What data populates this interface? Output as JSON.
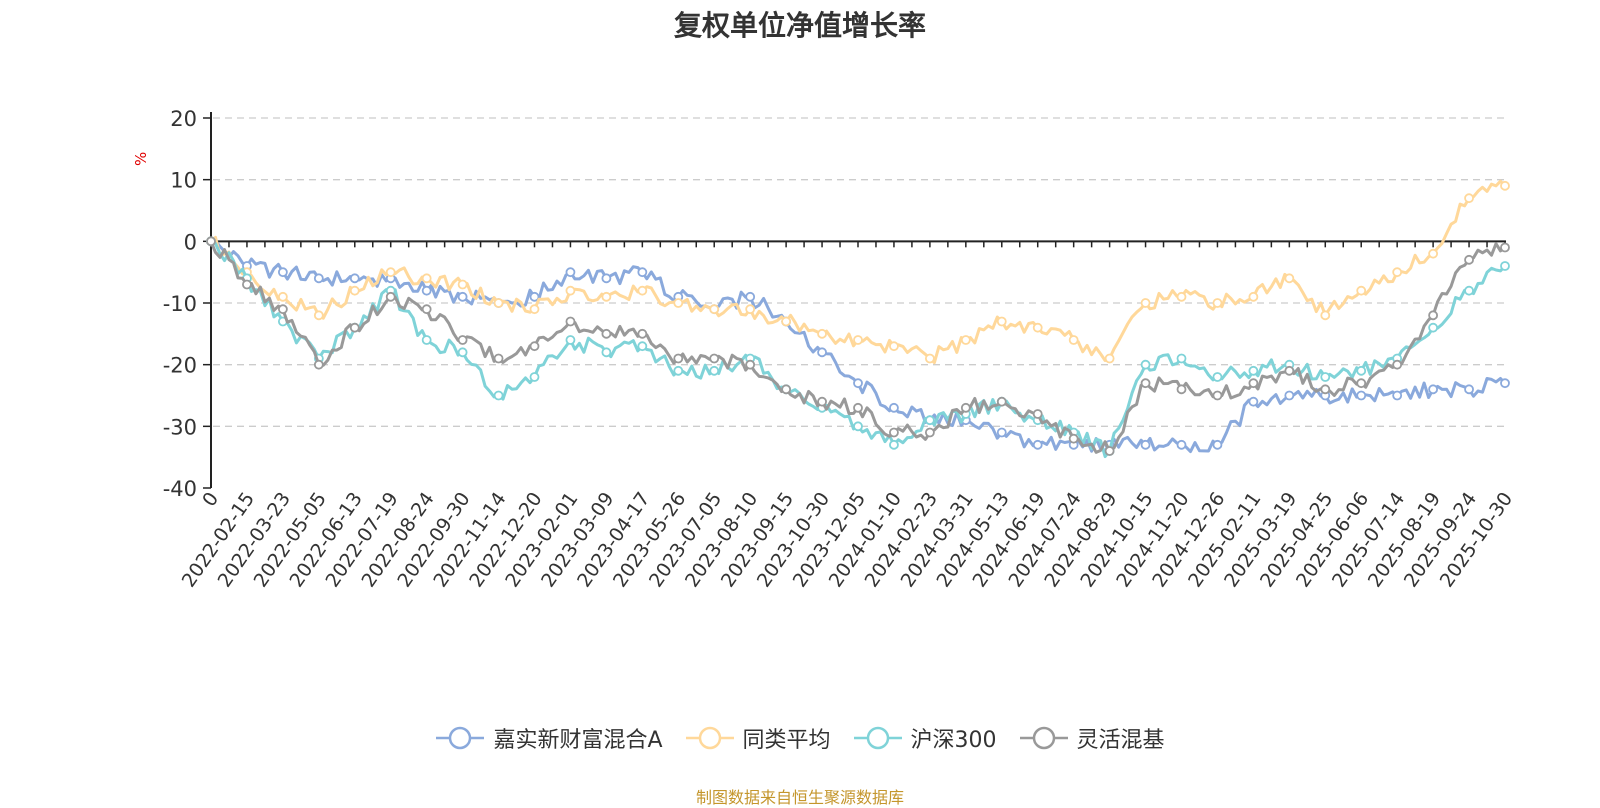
{
  "chart_data": {
    "type": "line",
    "title": "复权单位净值增长率",
    "ylabel": "%",
    "ylim": [
      -40,
      20
    ],
    "yticks": [
      20,
      10,
      0,
      -10,
      -20,
      -30,
      -40
    ],
    "categories": [
      "0",
      "2022-02-15",
      "2022-03-23",
      "2022-05-05",
      "2022-06-13",
      "2022-07-19",
      "2022-08-24",
      "2022-09-30",
      "2022-11-14",
      "2022-12-20",
      "2023-02-01",
      "2023-03-09",
      "2023-04-17",
      "2023-05-26",
      "2023-07-05",
      "2023-08-10",
      "2023-09-15",
      "2023-10-30",
      "2023-12-05",
      "2024-01-10",
      "2024-02-23",
      "2024-03-31",
      "2024-05-13",
      "2024-06-19",
      "2024-07-24",
      "2024-08-29",
      "2024-10-15",
      "2024-11-20",
      "2024-12-26",
      "2025-02-11",
      "2025-03-19",
      "2025-04-25",
      "2025-06-06",
      "2025-07-14",
      "2025-08-19",
      "2025-09-24",
      "2025-10-30"
    ],
    "series": [
      {
        "name": "嘉实新财富混合A",
        "color": "#8aa9dc",
        "values": [
          0,
          -4,
          -5,
          -6,
          -6,
          -6,
          -8,
          -9,
          -10,
          -9,
          -5,
          -6,
          -5,
          -9,
          -11,
          -9,
          -13,
          -18,
          -23,
          -27,
          -29,
          -29,
          -31,
          -33,
          -33,
          -33,
          -33,
          -33,
          -33,
          -26,
          -25,
          -25,
          -25,
          -25,
          -24,
          -24,
          -23
        ]
      },
      {
        "name": "同类平均",
        "color": "#ffd89a",
        "values": [
          0,
          -5,
          -9,
          -12,
          -8,
          -5,
          -6,
          -7,
          -10,
          -11,
          -8,
          -9,
          -8,
          -10,
          -11,
          -11,
          -13,
          -15,
          -16,
          -17,
          -19,
          -16,
          -13,
          -14,
          -16,
          -19,
          -10,
          -9,
          -10,
          -9,
          -6,
          -12,
          -8,
          -5,
          -2,
          7,
          9
        ]
      },
      {
        "name": "沪深300",
        "color": "#7fd3d8",
        "values": [
          0,
          -6,
          -13,
          -19,
          -14,
          -8,
          -16,
          -18,
          -25,
          -22,
          -16,
          -18,
          -17,
          -21,
          -21,
          -19,
          -24,
          -27,
          -30,
          -33,
          -29,
          -28,
          -26,
          -29,
          -31,
          -34,
          -20,
          -19,
          -22,
          -21,
          -20,
          -22,
          -21,
          -19,
          -14,
          -8,
          -4
        ]
      },
      {
        "name": "灵活混基",
        "color": "#999999",
        "values": [
          0,
          -7,
          -11,
          -20,
          -14,
          -9,
          -11,
          -16,
          -19,
          -17,
          -13,
          -15,
          -15,
          -19,
          -19,
          -20,
          -24,
          -26,
          -27,
          -31,
          -31,
          -27,
          -26,
          -28,
          -32,
          -34,
          -23,
          -24,
          -25,
          -23,
          -21,
          -24,
          -23,
          -20,
          -12,
          -3,
          -1
        ]
      }
    ]
  },
  "source_note": "制图数据来自恒生聚源数据库"
}
